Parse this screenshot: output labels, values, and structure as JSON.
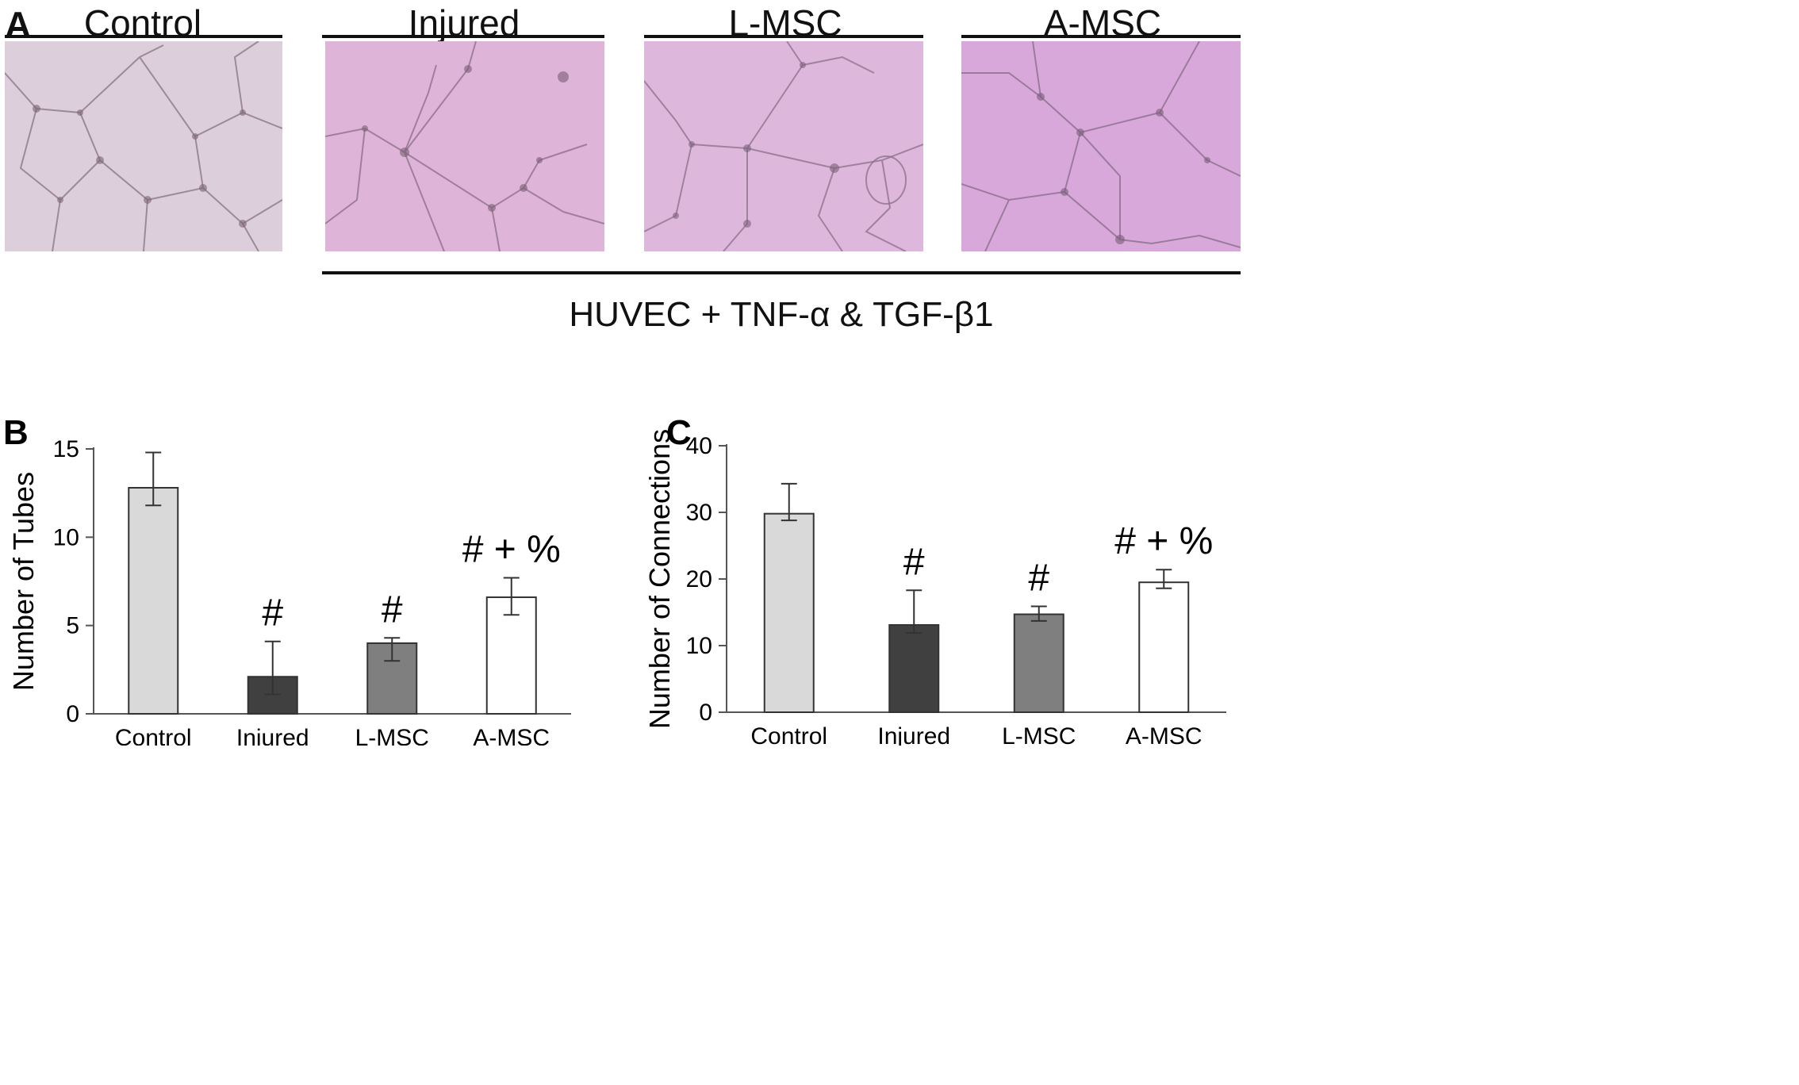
{
  "panel_a": {
    "letter": "A",
    "groups": [
      {
        "label": "Control",
        "tint": "#dccfdb"
      },
      {
        "label": "Injured",
        "tint": "#dfb4d9"
      },
      {
        "label": "L-MSC",
        "tint": "#deb7dd"
      },
      {
        "label": "A-MSC",
        "tint": "#d9a8da"
      }
    ],
    "treatment_caption": "HUVEC + TNF-α & TGF-β1"
  },
  "chart_data": [
    {
      "type": "bar",
      "panel": "B",
      "categories": [
        "Control",
        "Injured",
        "L-MSC",
        "A-MSC"
      ],
      "values": [
        12.8,
        2.1,
        4.0,
        6.6
      ],
      "error_low": [
        11.8,
        1.1,
        3.0,
        5.6
      ],
      "error_high": [
        14.8,
        4.1,
        4.3,
        7.7
      ],
      "annotations": [
        "",
        "#",
        "#",
        "# + %"
      ],
      "bar_colors": [
        "#d9d9d9",
        "#404040",
        "#7f7f7f",
        "#ffffff"
      ],
      "ylabel": "Number of Tubes",
      "ylim": [
        0,
        15
      ],
      "yticks": [
        0,
        5,
        10,
        15
      ],
      "grid": false
    },
    {
      "type": "bar",
      "panel": "C",
      "categories": [
        "Control",
        "Injured",
        "L-MSC",
        "A-MSC"
      ],
      "values": [
        29.8,
        13.1,
        14.7,
        19.5
      ],
      "error_low": [
        28.8,
        11.9,
        13.7,
        18.6
      ],
      "error_high": [
        34.3,
        18.3,
        15.9,
        21.4
      ],
      "annotations": [
        "",
        "#",
        "#",
        "# + %"
      ],
      "bar_colors": [
        "#d9d9d9",
        "#404040",
        "#7f7f7f",
        "#ffffff"
      ],
      "ylabel": "Number of Connections",
      "ylim": [
        0,
        40
      ],
      "yticks": [
        0,
        10,
        20,
        30,
        40
      ],
      "grid": false
    }
  ]
}
